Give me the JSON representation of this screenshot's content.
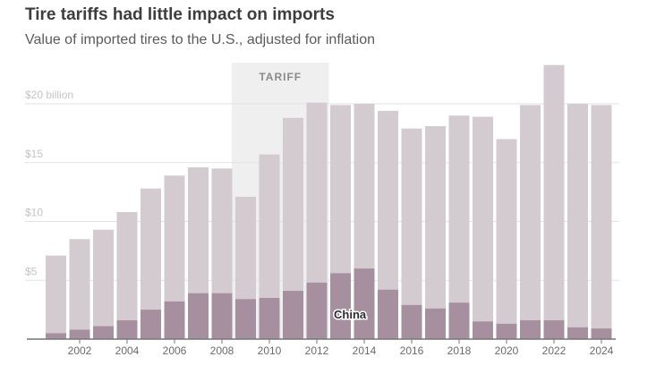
{
  "title": "Tire tariffs had little impact on imports",
  "subtitle": "Value of imported tires to the U.S., adjusted for inflation",
  "colors": {
    "total_bar": "#d4cbd1",
    "china_bar": "#a6909f",
    "tariff_band": "#efefef",
    "gridline": "#e2e2e2",
    "axis": "#777777"
  },
  "chart_data": {
    "type": "bar",
    "title": "Tire tariffs had little impact on imports",
    "subtitle": "Value of imported tires to the U.S., adjusted for inflation",
    "xlabel": "",
    "ylabel": "",
    "categories": [
      2001,
      2002,
      2003,
      2004,
      2005,
      2006,
      2007,
      2008,
      2009,
      2010,
      2011,
      2012,
      2013,
      2014,
      2015,
      2016,
      2017,
      2018,
      2019,
      2020,
      2021,
      2022,
      2023,
      2024
    ],
    "x_tick_labels": [
      "2002",
      "2004",
      "2006",
      "2008",
      "2010",
      "2012",
      "2014",
      "2016",
      "2018",
      "2020",
      "2022",
      "2024"
    ],
    "y_tick_values": [
      5,
      10,
      15,
      20
    ],
    "y_tick_labels": [
      "$5",
      "$10",
      "$15",
      "$20 billion"
    ],
    "ylim": [
      0,
      23.5
    ],
    "grid": true,
    "series": [
      {
        "name": "",
        "values": [
          7.1,
          8.5,
          9.3,
          10.8,
          12.8,
          13.9,
          14.6,
          14.5,
          12.1,
          15.7,
          18.8,
          20.1,
          19.9,
          20.0,
          19.4,
          17.9,
          18.1,
          19.0,
          18.9,
          17.0,
          19.9,
          23.3,
          20.0,
          19.9
        ]
      },
      {
        "name": "China",
        "values": [
          0.5,
          0.8,
          1.1,
          1.6,
          2.5,
          3.2,
          3.9,
          3.9,
          3.4,
          3.5,
          4.1,
          4.8,
          5.6,
          6.0,
          4.2,
          2.9,
          2.6,
          3.1,
          1.5,
          1.3,
          1.6,
          1.6,
          1.0,
          0.9
        ]
      }
    ],
    "annotations": [
      {
        "text": "TARIFF",
        "x_start": 2009,
        "x_end": 2012
      },
      {
        "text": "China",
        "x": 2013.4
      }
    ]
  }
}
